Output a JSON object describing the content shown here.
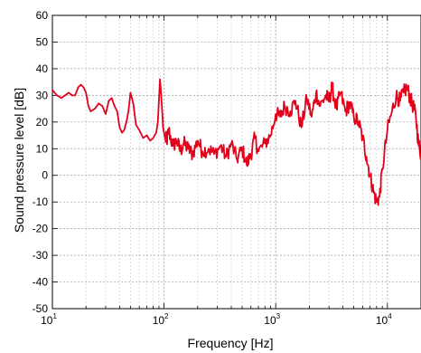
{
  "chart_data": {
    "type": "line",
    "title": "",
    "xlabel": "Frequency [Hz]",
    "ylabel": "Sound pressure level [dB]",
    "x_scale": "log",
    "xlim": [
      10,
      20000
    ],
    "ylim": [
      -50,
      60
    ],
    "grid": true,
    "legend": "none",
    "x_ticks": [
      {
        "value": 10,
        "mantissa": "10",
        "exp": "1"
      },
      {
        "value": 100,
        "mantissa": "10",
        "exp": "2"
      },
      {
        "value": 1000,
        "mantissa": "10",
        "exp": "3"
      },
      {
        "value": 10000,
        "mantissa": "10",
        "exp": "4"
      }
    ],
    "y_ticks": [
      60,
      50,
      40,
      30,
      20,
      10,
      0,
      -10,
      -20,
      -30,
      -40,
      -50
    ],
    "line_color": "#e3001b",
    "series": [
      {
        "x": [
          10,
          11,
          12,
          13,
          14,
          15,
          16,
          17,
          18,
          19,
          20,
          21,
          22,
          24,
          26,
          28,
          30,
          32,
          34,
          36,
          38,
          40,
          42,
          44,
          46,
          48,
          50,
          53,
          56,
          60,
          65,
          70,
          75,
          80,
          85,
          88,
          90,
          92,
          95,
          98,
          102,
          106,
          110,
          120,
          130,
          140,
          150,
          165,
          180,
          200,
          220,
          250,
          280,
          320,
          360,
          400,
          450,
          500,
          550,
          600,
          650,
          700,
          800,
          900,
          1000,
          1100,
          1200,
          1350,
          1500,
          1700,
          1900,
          2100,
          2300,
          2500,
          2800,
          3000,
          3200,
          3500,
          3800,
          4200,
          4600,
          5000,
          5500,
          6000,
          6500,
          7000,
          7500,
          8000,
          8500,
          9000,
          10000,
          11000,
          12000,
          13000,
          14000,
          15000,
          16000,
          17000,
          18000,
          19000,
          20000
        ],
        "y": [
          32,
          30,
          29,
          30,
          31,
          30,
          30,
          33,
          34,
          33,
          31,
          26,
          24,
          25,
          27,
          26,
          23,
          28,
          29,
          26,
          24,
          18,
          16,
          17,
          20,
          24,
          31,
          27,
          19,
          17,
          14,
          15,
          13,
          14,
          16,
          20,
          28,
          36,
          28,
          18,
          14,
          13,
          17,
          11,
          13,
          9,
          12,
          10,
          8,
          13,
          9,
          10,
          8,
          11,
          7,
          12,
          6,
          10,
          4,
          8,
          14,
          9,
          12,
          15,
          23,
          22,
          26,
          24,
          28,
          18,
          29,
          22,
          31,
          26,
          30,
          28,
          33,
          25,
          31,
          24,
          27,
          22,
          20,
          14,
          7,
          0,
          -6,
          -10,
          -8,
          2,
          17,
          24,
          30,
          28,
          31,
          33,
          29,
          26,
          22,
          12,
          8
        ]
      }
    ]
  }
}
